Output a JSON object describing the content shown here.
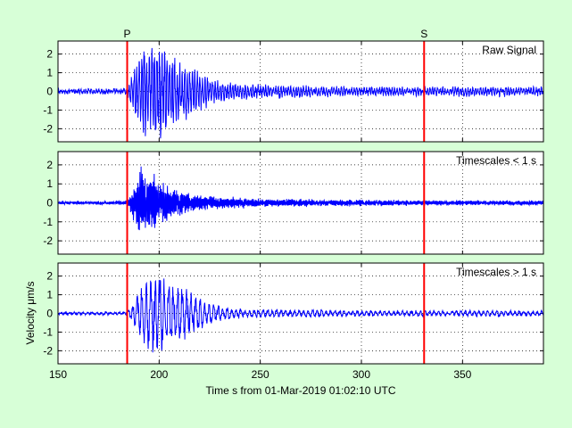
{
  "chart_data": {
    "type": "line",
    "xlabel": "Time s from 01-Mar-2019 01:02:10 UTC",
    "ylabel": "Velocity μm/s",
    "xlim": [
      150,
      390
    ],
    "xticks": [
      150,
      200,
      250,
      300,
      350
    ],
    "ylim": [
      -2.7,
      2.7
    ],
    "yticks": [
      -2,
      -1,
      0,
      1,
      2
    ],
    "grid": true,
    "line_color": "#0000ff",
    "marker_color": "#ff0000",
    "background": "#d7ffd7",
    "phase_markers": [
      {
        "label": "P",
        "x": 184.2
      },
      {
        "label": "S",
        "x": 331.0
      }
    ],
    "panels": [
      {
        "title": "Raw Signal",
        "noise_amplitude": 0.09,
        "envelope": [
          [
            150,
            0.09
          ],
          [
            184,
            0.1
          ],
          [
            188,
            1.4
          ],
          [
            192,
            2.3
          ],
          [
            197,
            2.6
          ],
          [
            203,
            2.3
          ],
          [
            208,
            1.8
          ],
          [
            213,
            1.4
          ],
          [
            220,
            1.0
          ],
          [
            226,
            0.65
          ],
          [
            235,
            0.45
          ],
          [
            250,
            0.32
          ],
          [
            270,
            0.25
          ],
          [
            300,
            0.2
          ],
          [
            330,
            0.2
          ],
          [
            350,
            0.22
          ],
          [
            390,
            0.2
          ]
        ],
        "frequency_hz": 0.8
      },
      {
        "title": "Timescales < 1 s",
        "noise_amplitude": 0.05,
        "envelope": [
          [
            150,
            0.05
          ],
          [
            184,
            0.06
          ],
          [
            188,
            1.0
          ],
          [
            192,
            2.1
          ],
          [
            196,
            1.6
          ],
          [
            200,
            1.2
          ],
          [
            206,
            0.8
          ],
          [
            212,
            0.55
          ],
          [
            220,
            0.4
          ],
          [
            230,
            0.28
          ],
          [
            250,
            0.2
          ],
          [
            280,
            0.15
          ],
          [
            320,
            0.12
          ],
          [
            350,
            0.1
          ],
          [
            390,
            0.1
          ]
        ],
        "frequency_hz": 2.0
      },
      {
        "title": "Timescales > 1 s",
        "noise_amplitude": 0.04,
        "envelope": [
          [
            150,
            0.05
          ],
          [
            184,
            0.06
          ],
          [
            188,
            0.7
          ],
          [
            192,
            1.6
          ],
          [
            197,
            2.0
          ],
          [
            203,
            1.9
          ],
          [
            208,
            1.6
          ],
          [
            213,
            1.3
          ],
          [
            220,
            0.9
          ],
          [
            226,
            0.55
          ],
          [
            232,
            0.3
          ],
          [
            245,
            0.2
          ],
          [
            270,
            0.18
          ],
          [
            300,
            0.15
          ],
          [
            330,
            0.13
          ],
          [
            350,
            0.15
          ],
          [
            390,
            0.12
          ]
        ],
        "frequency_hz": 0.45
      }
    ]
  }
}
